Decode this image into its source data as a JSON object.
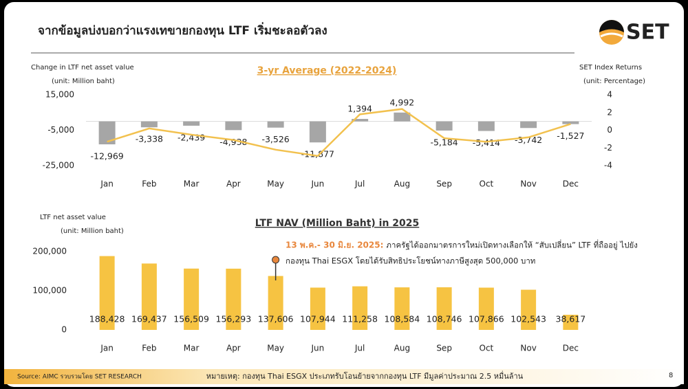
{
  "header": {
    "title": "จากข้อมูลบ่งบอกว่าแรงเทขายกองทุน LTF เริ่มชะลอตัวลง",
    "logo": "SET"
  },
  "chart_data": [
    {
      "type": "bar",
      "title": "3-yr Average (2022-2024)",
      "y_label": [
        "Change in LTF net asset value",
        "(unit: Million baht)"
      ],
      "y2_label": [
        "SET Index Returns",
        "(unit: Percentage)"
      ],
      "categories": [
        "Jan",
        "Feb",
        "Mar",
        "Apr",
        "May",
        "Jun",
        "Jul",
        "Aug",
        "Sep",
        "Oct",
        "Nov",
        "Dec"
      ],
      "series": [
        {
          "type": "bar",
          "color": "#a6a6a6",
          "values": [
            -12969,
            -3338,
            -2439,
            -4938,
            -3526,
            -11877,
            1394,
            4992,
            -5184,
            -5414,
            -3742,
            -1527
          ],
          "value_labels": [
            "-12,969",
            "-3,338",
            "-2,439",
            "-4,938",
            "-3,526",
            "-11,877",
            "1,394",
            "4,992",
            "-5,184",
            "-5,414",
            "-3,742",
            "-1,527"
          ]
        },
        {
          "type": "line",
          "axis": "y2",
          "color": "#f2c14e",
          "values": [
            -1.3,
            0.2,
            -0.5,
            -1.1,
            -2.2,
            -2.9,
            1.8,
            2.4,
            -0.9,
            -1.3,
            -0.8,
            0.7
          ]
        }
      ],
      "ylim": [
        -25000,
        15000
      ],
      "yticks": [
        {
          "value": 15000,
          "label": "15,000"
        },
        {
          "value": -5000,
          "label": "-5,000"
        },
        {
          "value": -25000,
          "label": "-25,000"
        }
      ],
      "y2lim": [
        -4,
        4
      ],
      "y2ticks": [
        4,
        2,
        0,
        -2,
        -4
      ],
      "grid": false
    },
    {
      "type": "bar",
      "title": "LTF NAV (Million Baht) in 2025",
      "y_label": [
        "LTF net asset value",
        "(unit: Million baht)"
      ],
      "categories": [
        "Jan",
        "Feb",
        "Mar",
        "Apr",
        "May",
        "Jun",
        "Jul",
        "Aug",
        "Sep",
        "Oct",
        "Nov",
        "Dec"
      ],
      "series": [
        {
          "type": "bar",
          "color": "#f6c342",
          "values": [
            188428,
            169437,
            156509,
            156293,
            137606,
            107944,
            111258,
            108584,
            108746,
            107866,
            102543,
            38617
          ],
          "value_labels": [
            "188,428",
            "169,437",
            "156,509",
            "156,293",
            "137,606",
            "107,944",
            "111,258",
            "108,584",
            "108,746",
            "107,866",
            "102,543",
            "38,617"
          ]
        }
      ],
      "ylim": [
        0,
        200000
      ],
      "yticks": [
        {
          "value": 200000,
          "label": "200,000"
        },
        {
          "value": 100000,
          "label": "100,000"
        },
        0
      ],
      "grid": false,
      "annotation": {
        "date": "13 พ.ค.- 30 มิ.ย. 2025:",
        "text": [
          "ภาครัฐได้ออกมาตรการใหม่เปิดทางเลือกให้ “สับเปลี่ยน” LTF ที่ถืออยู่ ไปยัง",
          "กองทุน Thai ESGX โดยได้รับสิทธิประโยชน์ทางภาษีสูงสุด 500,000 บาท"
        ]
      }
    }
  ],
  "footer": {
    "source": "Source: AIMC รวบรวมโดย SET RESEARCH",
    "note": "หมายเหตุ: กองทุน Thai ESGX ประเภทรับโอนย้ายจากกองทุน LTF มีมูลค่าประมาณ 2.5 หมื่นล้าน",
    "page": "8"
  }
}
